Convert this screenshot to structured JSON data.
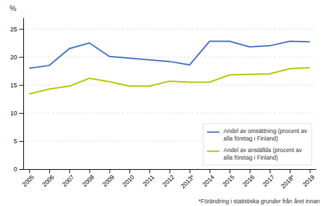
{
  "chart_data": {
    "type": "line",
    "y_label": "%",
    "categories": [
      "2005",
      "2006",
      "2007",
      "2008",
      "2009",
      "2010",
      "2011",
      "2012",
      "2013*",
      "2014",
      "2015",
      "2016",
      "2017",
      "2018*",
      "2019"
    ],
    "series": [
      {
        "name": "Andel av omsättning (procent av\nalla företag i Finland)",
        "color": "#4472C4",
        "values": [
          18.0,
          18.5,
          21.5,
          22.5,
          20.1,
          19.8,
          19.5,
          19.2,
          18.6,
          22.8,
          22.8,
          21.8,
          22.0,
          22.8,
          22.7
        ]
      },
      {
        "name": "Andel av anställda (procent av\nalla företag i Finland)",
        "color": "#B5C300",
        "values": [
          13.4,
          14.3,
          14.8,
          16.2,
          15.6,
          14.8,
          14.8,
          15.7,
          15.5,
          15.5,
          16.8,
          16.9,
          17.0,
          17.9,
          18.1
        ]
      }
    ],
    "ylim": [
      0,
      27
    ],
    "yticks": [
      0,
      5,
      10,
      15,
      20,
      25
    ],
    "grid": true,
    "legend": "lower right",
    "annotations": [
      "*Förändring i statistiska grunder från året innan"
    ]
  }
}
